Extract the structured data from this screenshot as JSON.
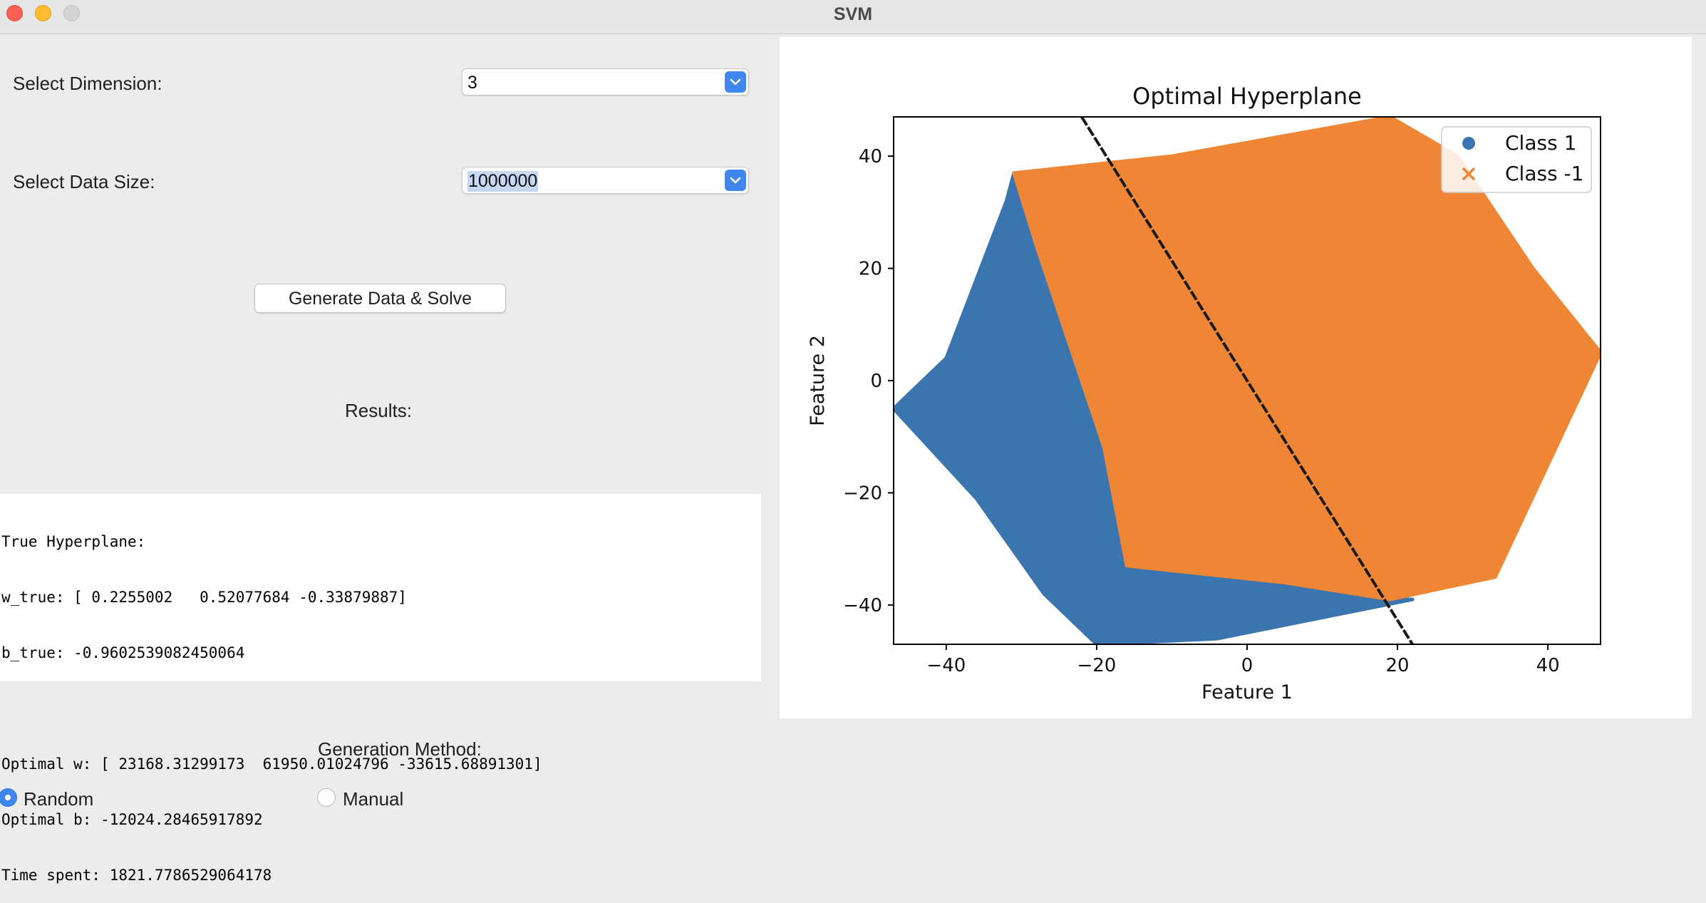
{
  "window": {
    "title": "SVM"
  },
  "controls": {
    "dimension_label": "Select Dimension:",
    "dimension_value": "3",
    "size_label": "Select Data Size:",
    "size_value": "1000000",
    "generate_button": "Generate Data & Solve",
    "results_label": "Results:"
  },
  "results": {
    "lines": [
      "True Hyperplane:",
      "w_true: [ 0.2255002   0.52077684 -0.33879887]",
      "b_true: -0.9602539082450064",
      "",
      "Optimal w: [ 23168.31299173  61950.01024796 -33615.68891301]",
      "Optimal b: -12024.28465917892",
      "Time spent: 1821.7786529064178"
    ]
  },
  "generation": {
    "label": "Generation Method:",
    "options": [
      {
        "label": "Random",
        "selected": true
      },
      {
        "label": "Manual",
        "selected": false
      }
    ]
  },
  "colors": {
    "class1": "#3b75af",
    "class_neg1": "#ef8636",
    "accent": "#3f86ee"
  },
  "chart_data": {
    "type": "scatter",
    "title": "Optimal Hyperplane",
    "xlabel": "Feature 1",
    "ylabel": "Feature 2",
    "xlim": [
      -47,
      47
    ],
    "ylim": [
      -47,
      47
    ],
    "xticks": [
      -40,
      -20,
      0,
      20,
      40
    ],
    "yticks": [
      -40,
      -20,
      0,
      20,
      40
    ],
    "x_tick_labels": [
      "−40",
      "−20",
      "0",
      "20",
      "40"
    ],
    "y_tick_labels": [
      "−40",
      "−20",
      "0",
      "20",
      "40"
    ],
    "grid": false,
    "legend": "top-right",
    "series": [
      {
        "name": "Class 1",
        "marker": "circle",
        "region": [
          [
            -31,
            37
          ],
          [
            -28,
            24
          ],
          [
            -25,
            12
          ],
          [
            -22,
            0
          ],
          [
            -19,
            -12
          ],
          [
            -16,
            -33
          ],
          [
            5,
            -36
          ],
          [
            18,
            -39
          ],
          [
            22,
            -39
          ],
          [
            -4,
            -46
          ],
          [
            -20,
            -47
          ],
          [
            -27,
            -38
          ],
          [
            -36,
            -21
          ],
          [
            -47,
            -5
          ],
          [
            -40,
            4
          ],
          [
            -32,
            32
          ]
        ]
      },
      {
        "name": "Class -1",
        "marker": "x",
        "region": [
          [
            -31,
            37
          ],
          [
            -10,
            40
          ],
          [
            19,
            47
          ],
          [
            28,
            40
          ],
          [
            38,
            20
          ],
          [
            47,
            5
          ],
          [
            40,
            -15
          ],
          [
            33,
            -35
          ],
          [
            19,
            -39
          ],
          [
            5,
            -36
          ],
          [
            -16,
            -33
          ],
          [
            -19,
            -12
          ],
          [
            -22,
            0
          ],
          [
            -25,
            12
          ],
          [
            -28,
            24
          ]
        ]
      }
    ],
    "hyperplane_line": [
      [
        -22,
        47
      ],
      [
        22,
        -47
      ]
    ]
  }
}
